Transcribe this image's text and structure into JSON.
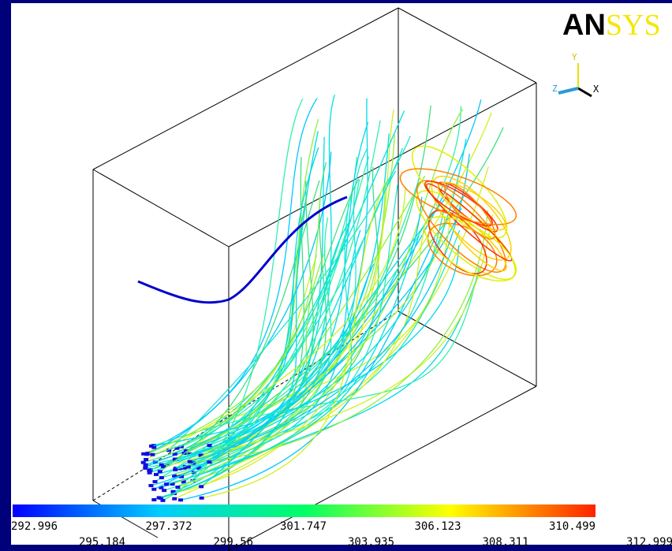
{
  "logo": {
    "dark": "AN",
    "light": "SYS"
  },
  "triad": {
    "x": "X",
    "y": "Y",
    "z": "Z"
  },
  "legend": {
    "top_labels": [
      "292.996",
      "297.372",
      "301.747",
      "306.123",
      "310.499"
    ],
    "bottom_labels": [
      "295.184",
      "299.56",
      "303.935",
      "308.311",
      "312.999"
    ]
  }
}
